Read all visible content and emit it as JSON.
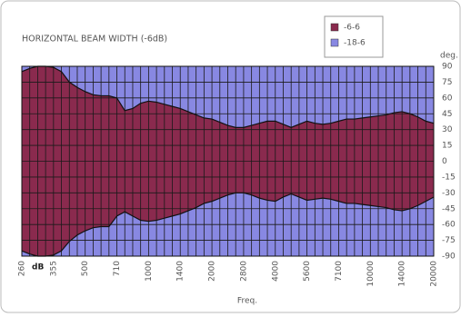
{
  "chart_data": {
    "type": "band",
    "title": "HORIZONTAL BEAM WIDTH (-6dB)",
    "y_unit_label": "deg.",
    "unit_label": "dB",
    "x_label": "Freq.",
    "categories": [
      "260",
      null,
      null,
      null,
      "355",
      null,
      null,
      null,
      "500",
      null,
      null,
      null,
      "710",
      null,
      null,
      null,
      "1000",
      null,
      null,
      null,
      "1400",
      null,
      null,
      null,
      "2000",
      null,
      null,
      null,
      "2800",
      null,
      null,
      null,
      "4000",
      null,
      null,
      null,
      "5600",
      null,
      null,
      null,
      "7100",
      null,
      null,
      null,
      "10000",
      null,
      null,
      null,
      "14000",
      null,
      null,
      null,
      "20000"
    ],
    "series": [
      {
        "name": "-18-6",
        "color": "#8888e2",
        "values": [
          90,
          90,
          90,
          90,
          90,
          90,
          90,
          90,
          90,
          90,
          90,
          90,
          90,
          90,
          90,
          90,
          90,
          90,
          90,
          90,
          90,
          90,
          90,
          90,
          90,
          90,
          90,
          90,
          90,
          90,
          90,
          90,
          90,
          90,
          90,
          90,
          90,
          90,
          90,
          90,
          90,
          90,
          90,
          90,
          90,
          90,
          90,
          90,
          90,
          90,
          90,
          90,
          90
        ],
        "lower": [
          -90,
          -90,
          -90,
          -90,
          -90,
          -90,
          -90,
          -90,
          -90,
          -90,
          -90,
          -90,
          -90,
          -90,
          -90,
          -90,
          -90,
          -90,
          -90,
          -90,
          -90,
          -90,
          -90,
          -90,
          -90,
          -90,
          -90,
          -90,
          -90,
          -90,
          -90,
          -90,
          -90,
          -90,
          -90,
          -90,
          -90,
          -90,
          -90,
          -90,
          -90,
          -90,
          -90,
          -90,
          -90,
          -90,
          -90,
          -90,
          -90,
          -90,
          -90,
          -90,
          -90
        ]
      },
      {
        "name": "-6-6",
        "color": "#8a2a4e",
        "values": [
          85,
          88,
          90,
          90,
          89,
          85,
          75,
          70,
          66,
          63,
          62,
          62,
          60,
          48,
          50,
          55,
          57,
          56,
          54,
          52,
          50,
          47,
          44,
          41,
          40,
          37,
          34,
          32,
          32,
          34,
          36,
          38,
          38,
          35,
          32,
          35,
          38,
          36,
          35,
          36,
          38,
          40,
          40,
          41,
          42,
          43,
          44,
          46,
          47,
          45,
          42,
          38,
          36
        ],
        "lower": [
          -85,
          -88,
          -90,
          -90,
          -89,
          -85,
          -76,
          -70,
          -66,
          -63,
          -62,
          -62,
          -52,
          -48,
          -52,
          -56,
          -57,
          -56,
          -54,
          -52,
          -50,
          -47,
          -44,
          -40,
          -38,
          -35,
          -32,
          -30,
          -30,
          -32,
          -35,
          -37,
          -38,
          -34,
          -31,
          -34,
          -37,
          -36,
          -35,
          -36,
          -38,
          -40,
          -40,
          -41,
          -42,
          -43,
          -44,
          -46,
          -47,
          -45,
          -42,
          -38,
          -34
        ]
      }
    ],
    "ylim": [
      -90,
      90
    ],
    "yticks": [
      90,
      75,
      60,
      45,
      30,
      15,
      0,
      -15,
      -30,
      -45,
      -60,
      -75,
      -90
    ],
    "grid": true
  }
}
